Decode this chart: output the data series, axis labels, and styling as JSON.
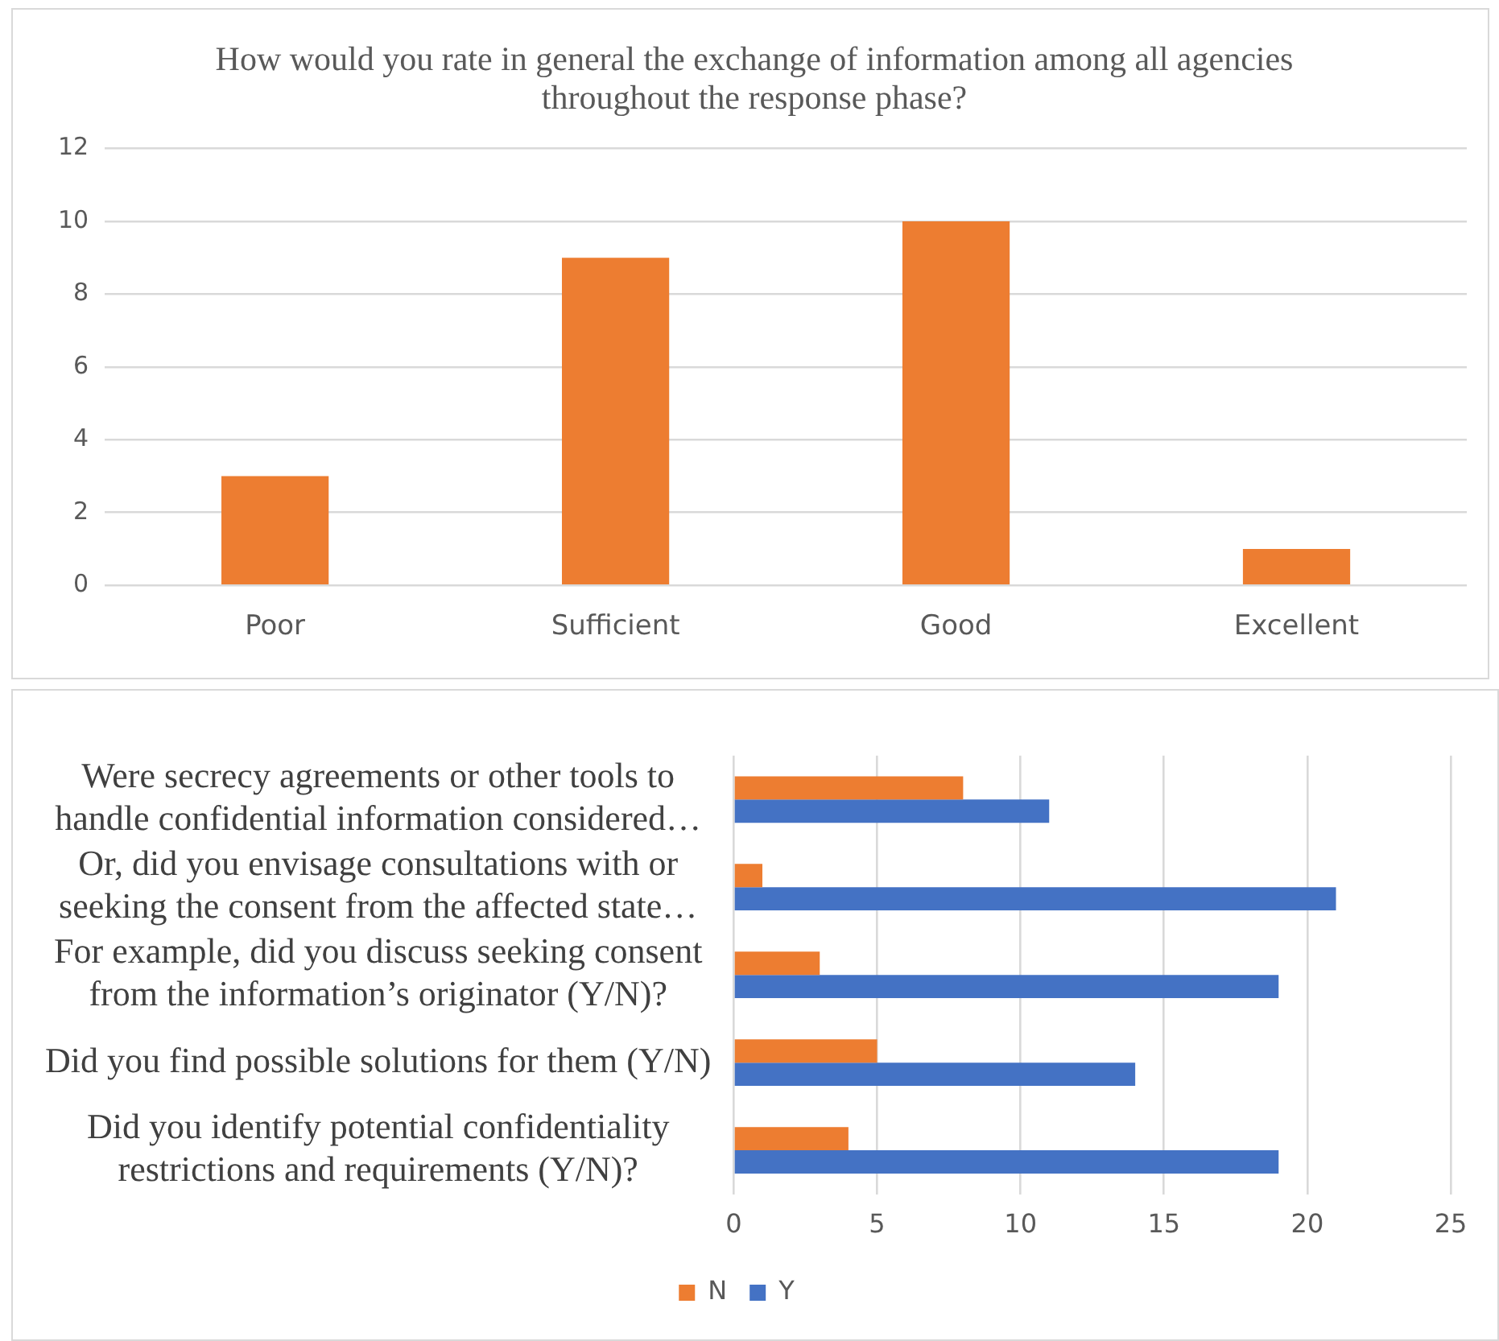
{
  "chart_data": [
    {
      "type": "bar",
      "title": "How would you rate in general the exchange of information among all agencies throughout the response phase?",
      "categories": [
        "Poor",
        "Sufficient",
        "Good",
        "Excellent"
      ],
      "values": [
        3,
        9,
        10,
        1
      ],
      "color": "#ed7d31",
      "ylim": [
        0,
        12
      ],
      "yticks": [
        0,
        2,
        4,
        6,
        8,
        10,
        12
      ],
      "grid": "y"
    },
    {
      "type": "bar",
      "orientation": "horizontal",
      "categories": [
        "Were secrecy agreements or other tools to handle confidential information considered…",
        "Or, did you envisage consultations with or seeking the consent from the affected state…",
        "For example, did you discuss seeking consent from the information’s originator (Y/N)?",
        "Did you find possible solutions for them (Y/N)",
        "Did you identify potential confidentiality restrictions and requirements (Y/N)?"
      ],
      "series": [
        {
          "name": "N",
          "color": "#ed7d31",
          "values": [
            8,
            1,
            3,
            5,
            4
          ]
        },
        {
          "name": "Y",
          "color": "#4472c4",
          "values": [
            11,
            21,
            19,
            14,
            19
          ]
        }
      ],
      "xlim": [
        0,
        25
      ],
      "xticks": [
        0,
        5,
        10,
        15,
        20,
        25
      ],
      "grid": "x",
      "legend": "bottom"
    }
  ]
}
